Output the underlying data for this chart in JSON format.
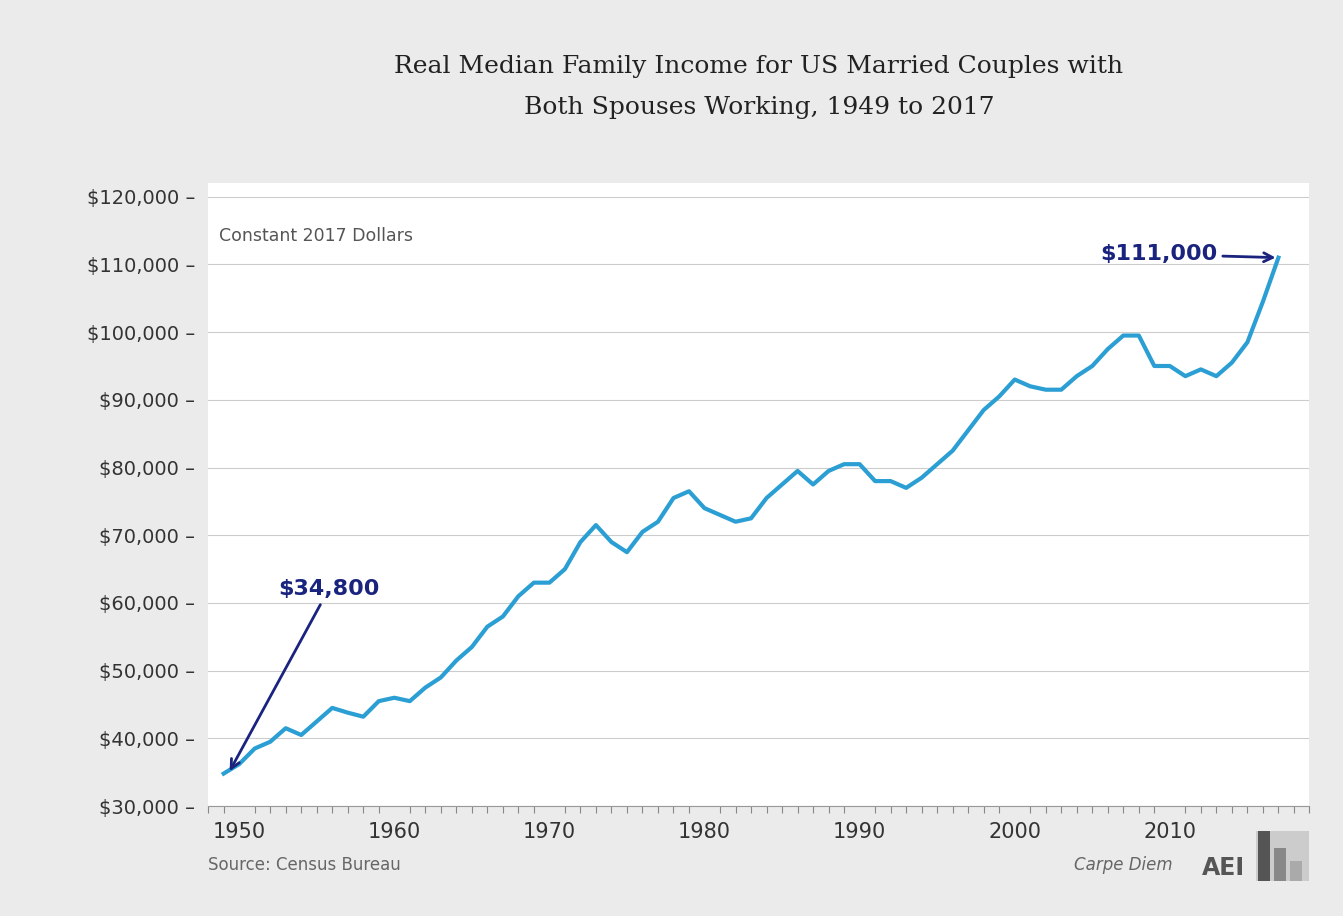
{
  "title": "Real Median Family Income for US Married Couples with\nBoth Spouses Working, 1949 to 2017",
  "subtitle": "Constant 2017 Dollars",
  "source": "Source: Census Bureau",
  "watermark": "Carpe Diem",
  "line_color": "#2b9fd4",
  "line_width": 3.0,
  "annotation_color": "#1a237e",
  "bg_color": "#ebebeb",
  "plot_bg_color": "#ffffff",
  "ylim": [
    30000,
    122000
  ],
  "yticks": [
    30000,
    40000,
    50000,
    60000,
    70000,
    80000,
    90000,
    100000,
    110000,
    120000
  ],
  "xticks": [
    1950,
    1960,
    1970,
    1980,
    1990,
    2000,
    2010
  ],
  "xlim": [
    1948,
    2019
  ],
  "years": [
    1949,
    1950,
    1951,
    1952,
    1953,
    1954,
    1955,
    1956,
    1957,
    1958,
    1959,
    1960,
    1961,
    1962,
    1963,
    1964,
    1965,
    1966,
    1967,
    1968,
    1969,
    1970,
    1971,
    1972,
    1973,
    1974,
    1975,
    1976,
    1977,
    1978,
    1979,
    1980,
    1981,
    1982,
    1983,
    1984,
    1985,
    1986,
    1987,
    1988,
    1989,
    1990,
    1991,
    1992,
    1993,
    1994,
    1995,
    1996,
    1997,
    1998,
    1999,
    2000,
    2001,
    2002,
    2003,
    2004,
    2005,
    2006,
    2007,
    2008,
    2009,
    2010,
    2011,
    2012,
    2013,
    2014,
    2015,
    2016,
    2017
  ],
  "values": [
    34800,
    36200,
    38500,
    39500,
    41500,
    40500,
    42500,
    44500,
    43800,
    43200,
    45500,
    46000,
    45500,
    47500,
    49000,
    51500,
    53500,
    56500,
    58000,
    61000,
    63000,
    63000,
    65000,
    69000,
    71500,
    69000,
    67500,
    70500,
    72000,
    75500,
    76500,
    74000,
    73000,
    72000,
    72500,
    75500,
    77500,
    79500,
    77500,
    79500,
    80500,
    80500,
    78000,
    78000,
    77000,
    78500,
    80500,
    82500,
    85500,
    88500,
    90500,
    93000,
    92000,
    91500,
    91500,
    93500,
    95000,
    97500,
    99500,
    99500,
    95000,
    95000,
    93500,
    94500,
    93500,
    95500,
    98500,
    104500,
    111000
  ]
}
